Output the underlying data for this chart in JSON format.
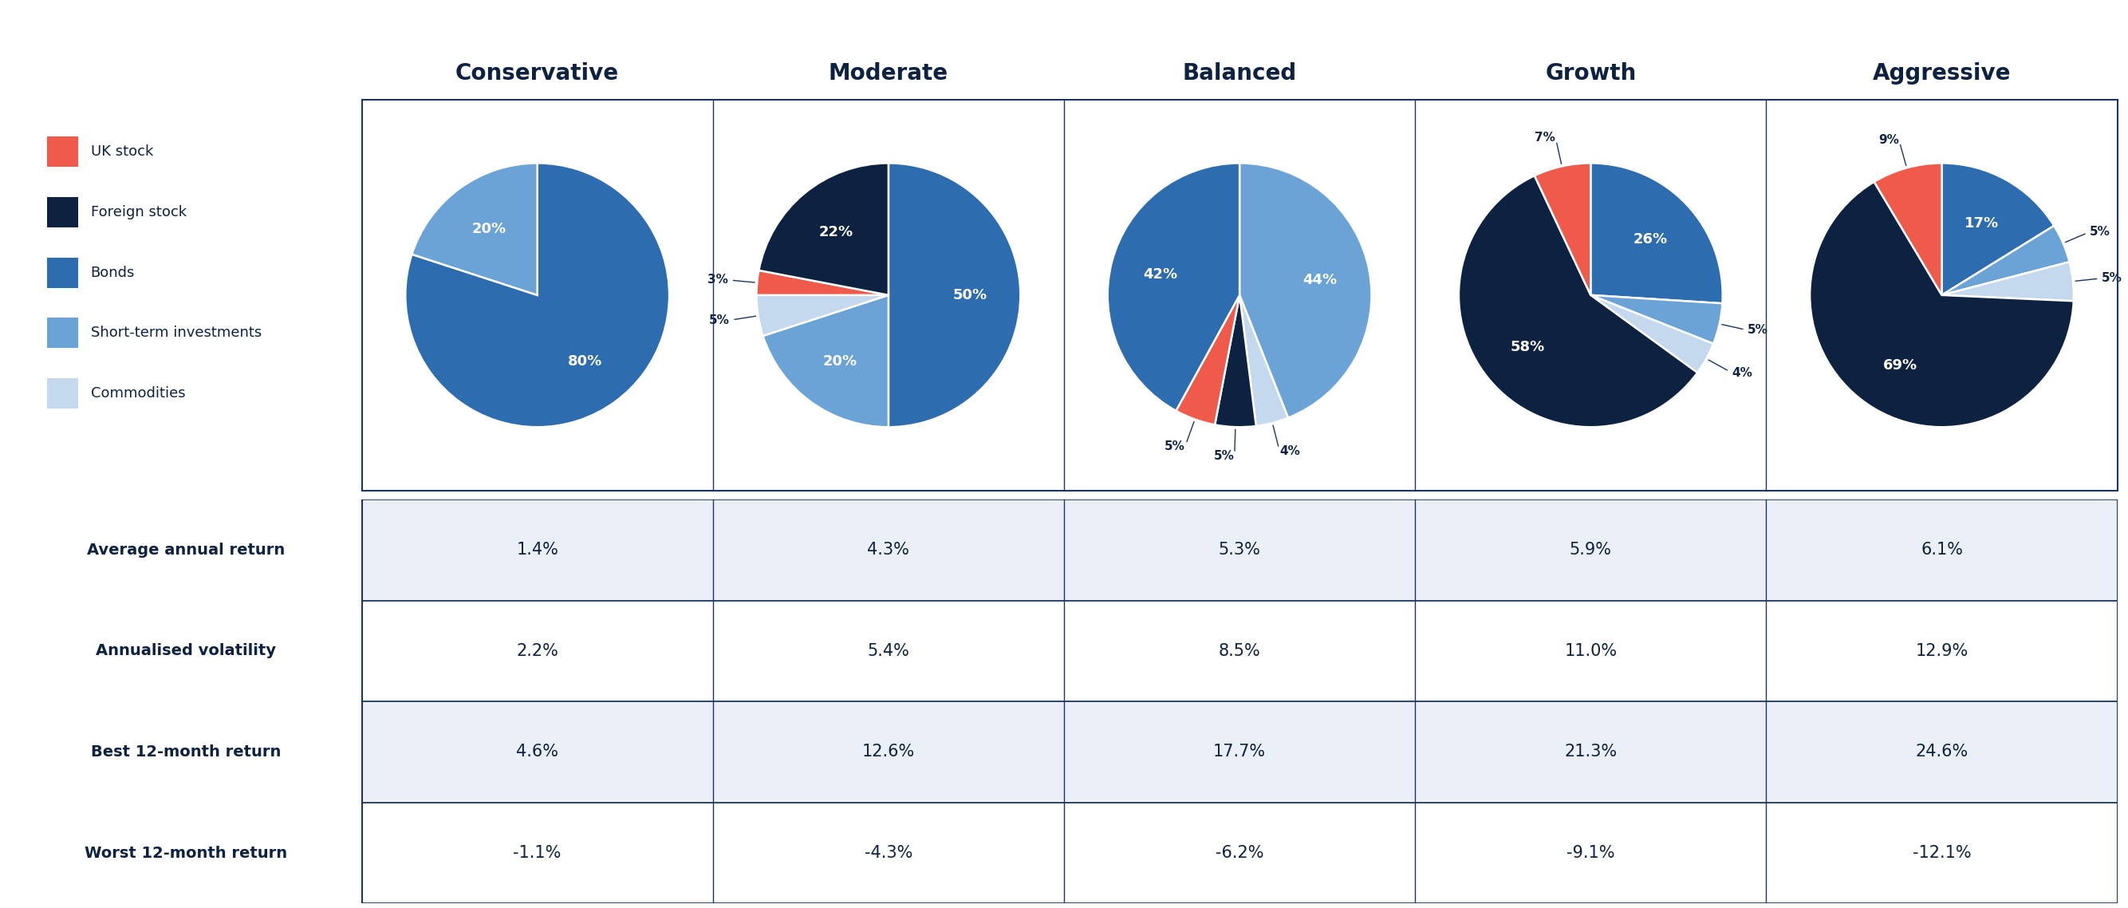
{
  "columns": [
    "Conservative",
    "Moderate",
    "Balanced",
    "Growth",
    "Aggressive"
  ],
  "pie_slices": {
    "Conservative": [
      {
        "name": "Bonds",
        "value": 80,
        "label": "80%",
        "label_inside": true
      },
      {
        "name": "Short-term investments",
        "value": 20,
        "label": "20%",
        "label_inside": true
      }
    ],
    "Moderate": [
      {
        "name": "Bonds",
        "value": 50,
        "label": "50%",
        "label_inside": true
      },
      {
        "name": "Short-term investments",
        "value": 20,
        "label": "20%",
        "label_inside": true
      },
      {
        "name": "Commodities",
        "value": 5,
        "label": "5%",
        "label_inside": false
      },
      {
        "name": "UK stock",
        "value": 3,
        "label": "3%",
        "label_inside": false
      },
      {
        "name": "Foreign stock",
        "value": 22,
        "label": "22%",
        "label_inside": true
      }
    ],
    "Balanced": [
      {
        "name": "Short-term investments",
        "value": 44,
        "label": "44%",
        "label_inside": true
      },
      {
        "name": "Commodities",
        "value": 4,
        "label": "4%",
        "label_inside": false
      },
      {
        "name": "Foreign stock",
        "value": 5,
        "label": "5%",
        "label_inside": false
      },
      {
        "name": "UK stock",
        "value": 5,
        "label": "5%",
        "label_inside": false
      },
      {
        "name": "Bonds",
        "value": 42,
        "label": "42%",
        "label_inside": true
      }
    ],
    "Growth": [
      {
        "name": "Bonds",
        "value": 26,
        "label": "26%",
        "label_inside": true
      },
      {
        "name": "Short-term investments",
        "value": 5,
        "label": "5%",
        "label_inside": false
      },
      {
        "name": "Commodities",
        "value": 4,
        "label": "4%",
        "label_inside": false
      },
      {
        "name": "Foreign stock",
        "value": 58,
        "label": "58%",
        "label_inside": true
      },
      {
        "name": "UK stock",
        "value": 7,
        "label": "7%",
        "label_inside": false
      }
    ],
    "Aggressive": [
      {
        "name": "Bonds",
        "value": 17,
        "label": "17%",
        "label_inside": true
      },
      {
        "name": "Short-term investments",
        "value": 5,
        "label": "5%",
        "label_inside": false
      },
      {
        "name": "Commodities",
        "value": 5,
        "label": "5%",
        "label_inside": false
      },
      {
        "name": "Foreign stock",
        "value": 69,
        "label": "69%",
        "label_inside": true
      },
      {
        "name": "UK stock",
        "value": 9,
        "label": "9%",
        "label_inside": false
      }
    ]
  },
  "pie_start_angles": {
    "Conservative": 90,
    "Moderate": 90,
    "Balanced": 90,
    "Growth": 90,
    "Aggressive": 90
  },
  "colors": {
    "UK stock": "#F05A4A",
    "Foreign stock": "#0D2241",
    "Bonds": "#2E6CB0",
    "Short-term investments": "#6BA3D6",
    "Commodities": "#C5D9EE"
  },
  "legend_order": [
    "UK stock",
    "Foreign stock",
    "Bonds",
    "Short-term investments",
    "Commodities"
  ],
  "table_rows": [
    {
      "label": "Average annual return",
      "values": [
        "1.4%",
        "4.3%",
        "5.3%",
        "5.9%",
        "6.1%"
      ]
    },
    {
      "label": "Annualised volatility",
      "values": [
        "2.2%",
        "5.4%",
        "8.5%",
        "11.0%",
        "12.9%"
      ]
    },
    {
      "label": "Best 12-month return",
      "values": [
        "4.6%",
        "12.6%",
        "17.7%",
        "21.3%",
        "24.6%"
      ]
    },
    {
      "label": "Worst 12-month return",
      "values": [
        "-1.1%",
        "-4.3%",
        "-6.2%",
        "-9.1%",
        "-12.1%"
      ]
    }
  ],
  "table_bg_even": "#EBF0F8",
  "table_bg_odd": "#ffffff",
  "border_color": "#1A3560",
  "text_dark": "#0D2241",
  "background_color": "#ffffff"
}
